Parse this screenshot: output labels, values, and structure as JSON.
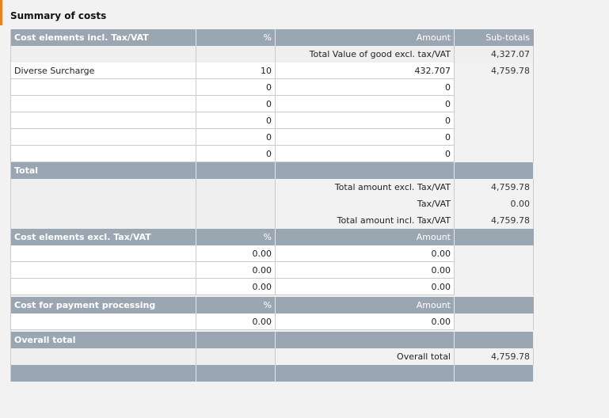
{
  "title": "Summary of costs",
  "section1": {
    "header": [
      "Cost elements incl. Tax/VAT",
      "%",
      "Amount",
      "Sub-totals"
    ],
    "goods_label": "Total Value of good excl. tax/VAT",
    "goods_subtotal": "4,327.07",
    "rows": [
      {
        "name": "Diverse Surcharge",
        "pct": "10",
        "amount": "432.707",
        "subtotal": "4,759.78"
      },
      {
        "name": "",
        "pct": "0",
        "amount": "0",
        "subtotal": ""
      },
      {
        "name": "",
        "pct": "0",
        "amount": "0",
        "subtotal": ""
      },
      {
        "name": "",
        "pct": "0",
        "amount": "0",
        "subtotal": ""
      },
      {
        "name": "",
        "pct": "0",
        "amount": "0",
        "subtotal": ""
      },
      {
        "name": "",
        "pct": "0",
        "amount": "0",
        "subtotal": ""
      }
    ]
  },
  "total": {
    "label": "Total",
    "lines": [
      {
        "label": "Total amount excl. Tax/VAT",
        "value": "4,759.78"
      },
      {
        "label": "Tax/VAT",
        "value": "0.00"
      },
      {
        "label": "Total amount incl. Tax/VAT",
        "value": "4,759.78"
      }
    ]
  },
  "section2": {
    "header": [
      "Cost elements excl. Tax/VAT",
      "%",
      "Amount"
    ],
    "rows": [
      {
        "pct": "0.00",
        "amount": "0.00"
      },
      {
        "pct": "0.00",
        "amount": "0.00"
      },
      {
        "pct": "0.00",
        "amount": "0.00"
      }
    ]
  },
  "section3": {
    "header": [
      "Cost for payment processing",
      "%",
      "Amount"
    ],
    "rows": [
      {
        "pct": "0.00",
        "amount": "0.00"
      }
    ]
  },
  "overall": {
    "label": "Overall total",
    "line_label": "Overall total",
    "value": "4,759.78"
  }
}
